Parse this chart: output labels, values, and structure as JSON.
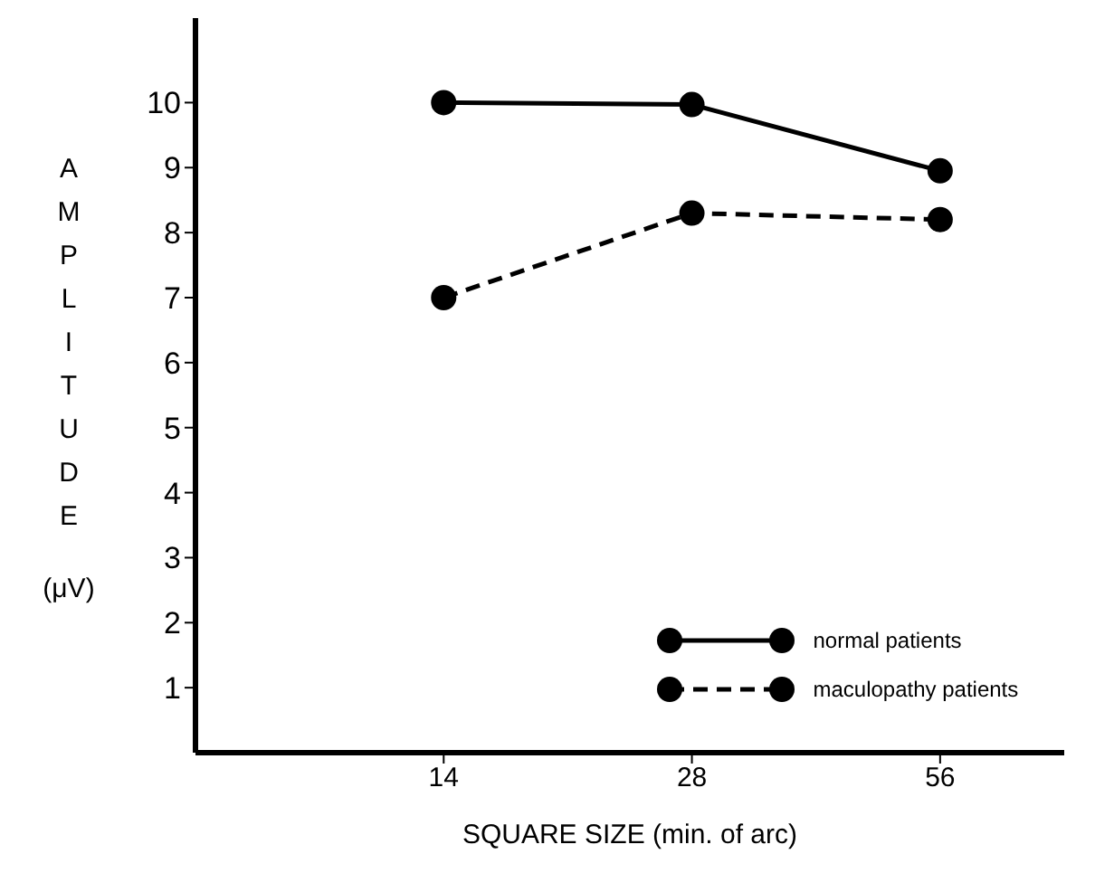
{
  "chart_data": {
    "type": "line",
    "xlabel": "SQUARE SIZE  (min. of arc)",
    "ylabel": "AMPLITUDE (μV)",
    "categories": [
      "14",
      "28",
      "56"
    ],
    "series": [
      {
        "name": "normal patients",
        "color": "#000000",
        "line_style": "solid",
        "values": [
          10,
          9.97,
          8.95
        ]
      },
      {
        "name": "maculopathy patients",
        "color": "#000000",
        "line_style": "dashed",
        "values": [
          7,
          8.3,
          8.2
        ]
      }
    ],
    "ylim": [
      0,
      11.3
    ],
    "yticks": [
      1,
      2,
      3,
      4,
      5,
      6,
      7,
      8,
      9,
      10
    ],
    "grid": false,
    "legend": "bottom right",
    "marker": "circle"
  }
}
